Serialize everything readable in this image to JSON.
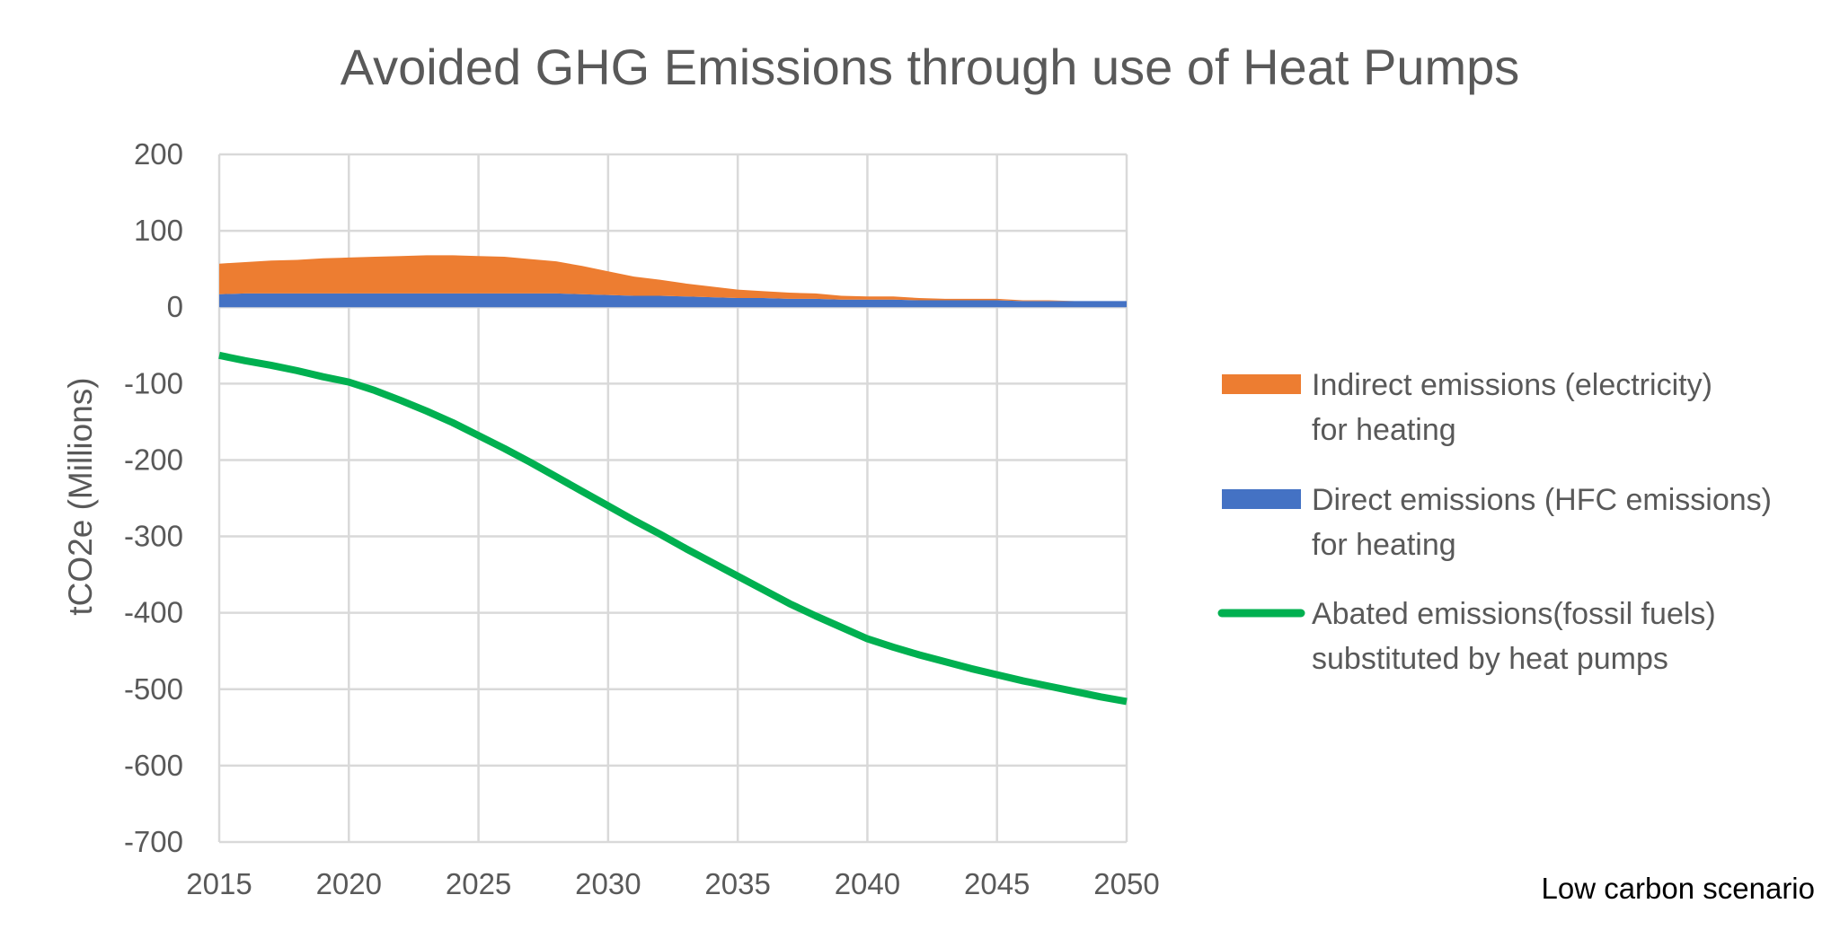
{
  "chart_data": {
    "type": "area",
    "title": "Avoided GHG Emissions through use of Heat Pumps",
    "xlabel": "",
    "ylabel": "tCO2e (Millions)",
    "xlim": [
      2015,
      2050
    ],
    "ylim": [
      -700,
      200
    ],
    "x_ticks": [
      "2015",
      "2020",
      "2025",
      "2030",
      "2035",
      "2040",
      "2045",
      "2050"
    ],
    "y_ticks": [
      "200",
      "100",
      "0",
      "-100",
      "-200",
      "-300",
      "-400",
      "-500",
      "-600",
      "-700"
    ],
    "grid": true,
    "legend_position": "right",
    "note": "Low carbon scenario",
    "x": [
      2015,
      2016,
      2017,
      2018,
      2019,
      2020,
      2021,
      2022,
      2023,
      2024,
      2025,
      2026,
      2027,
      2028,
      2029,
      2030,
      2031,
      2032,
      2033,
      2034,
      2035,
      2036,
      2037,
      2038,
      2039,
      2040,
      2041,
      2042,
      2043,
      2044,
      2045,
      2046,
      2047,
      2048,
      2049,
      2050
    ],
    "series": [
      {
        "name": "Direct emissions (HFC emissions) for heating",
        "legend_lines": [
          "Direct emissions (HFC emissions)",
          "for heating"
        ],
        "kind": "stacked-area",
        "color": "#4472c4",
        "values": [
          17,
          18,
          18,
          18,
          18,
          18,
          18,
          18,
          18,
          18,
          18,
          18,
          18,
          18,
          17,
          16,
          15,
          15,
          14,
          13,
          12,
          12,
          11,
          11,
          10,
          10,
          10,
          9,
          9,
          9,
          9,
          8,
          8,
          8,
          8,
          8
        ]
      },
      {
        "name": "Indirect emissions (electricity) for heating",
        "legend_lines": [
          "Indirect emissions (electricity)",
          "for heating"
        ],
        "kind": "stacked-area",
        "color": "#ed7d31",
        "values": [
          40,
          41,
          43,
          44,
          46,
          47,
          48,
          49,
          50,
          50,
          49,
          48,
          45,
          42,
          37,
          31,
          25,
          21,
          17,
          14,
          11,
          9,
          8,
          7,
          5,
          4,
          4,
          3,
          2,
          2,
          2,
          1,
          1,
          0,
          0,
          0
        ]
      },
      {
        "name": "Abated emissions(fossil fuels) substituted by heat pumps",
        "legend_lines": [
          "Abated emissions(fossil fuels)",
          "substituted by heat pumps"
        ],
        "kind": "line",
        "color": "#00b050",
        "values": [
          -63,
          -70,
          -76,
          -83,
          -91,
          -98,
          -109,
          -122,
          -136,
          -151,
          -168,
          -185,
          -203,
          -222,
          -241,
          -260,
          -279,
          -297,
          -316,
          -334,
          -352,
          -370,
          -388,
          -404,
          -419,
          -434,
          -445,
          -455,
          -464,
          -473,
          -481,
          -489,
          -496,
          -503,
          -510,
          -516
        ]
      }
    ]
  }
}
